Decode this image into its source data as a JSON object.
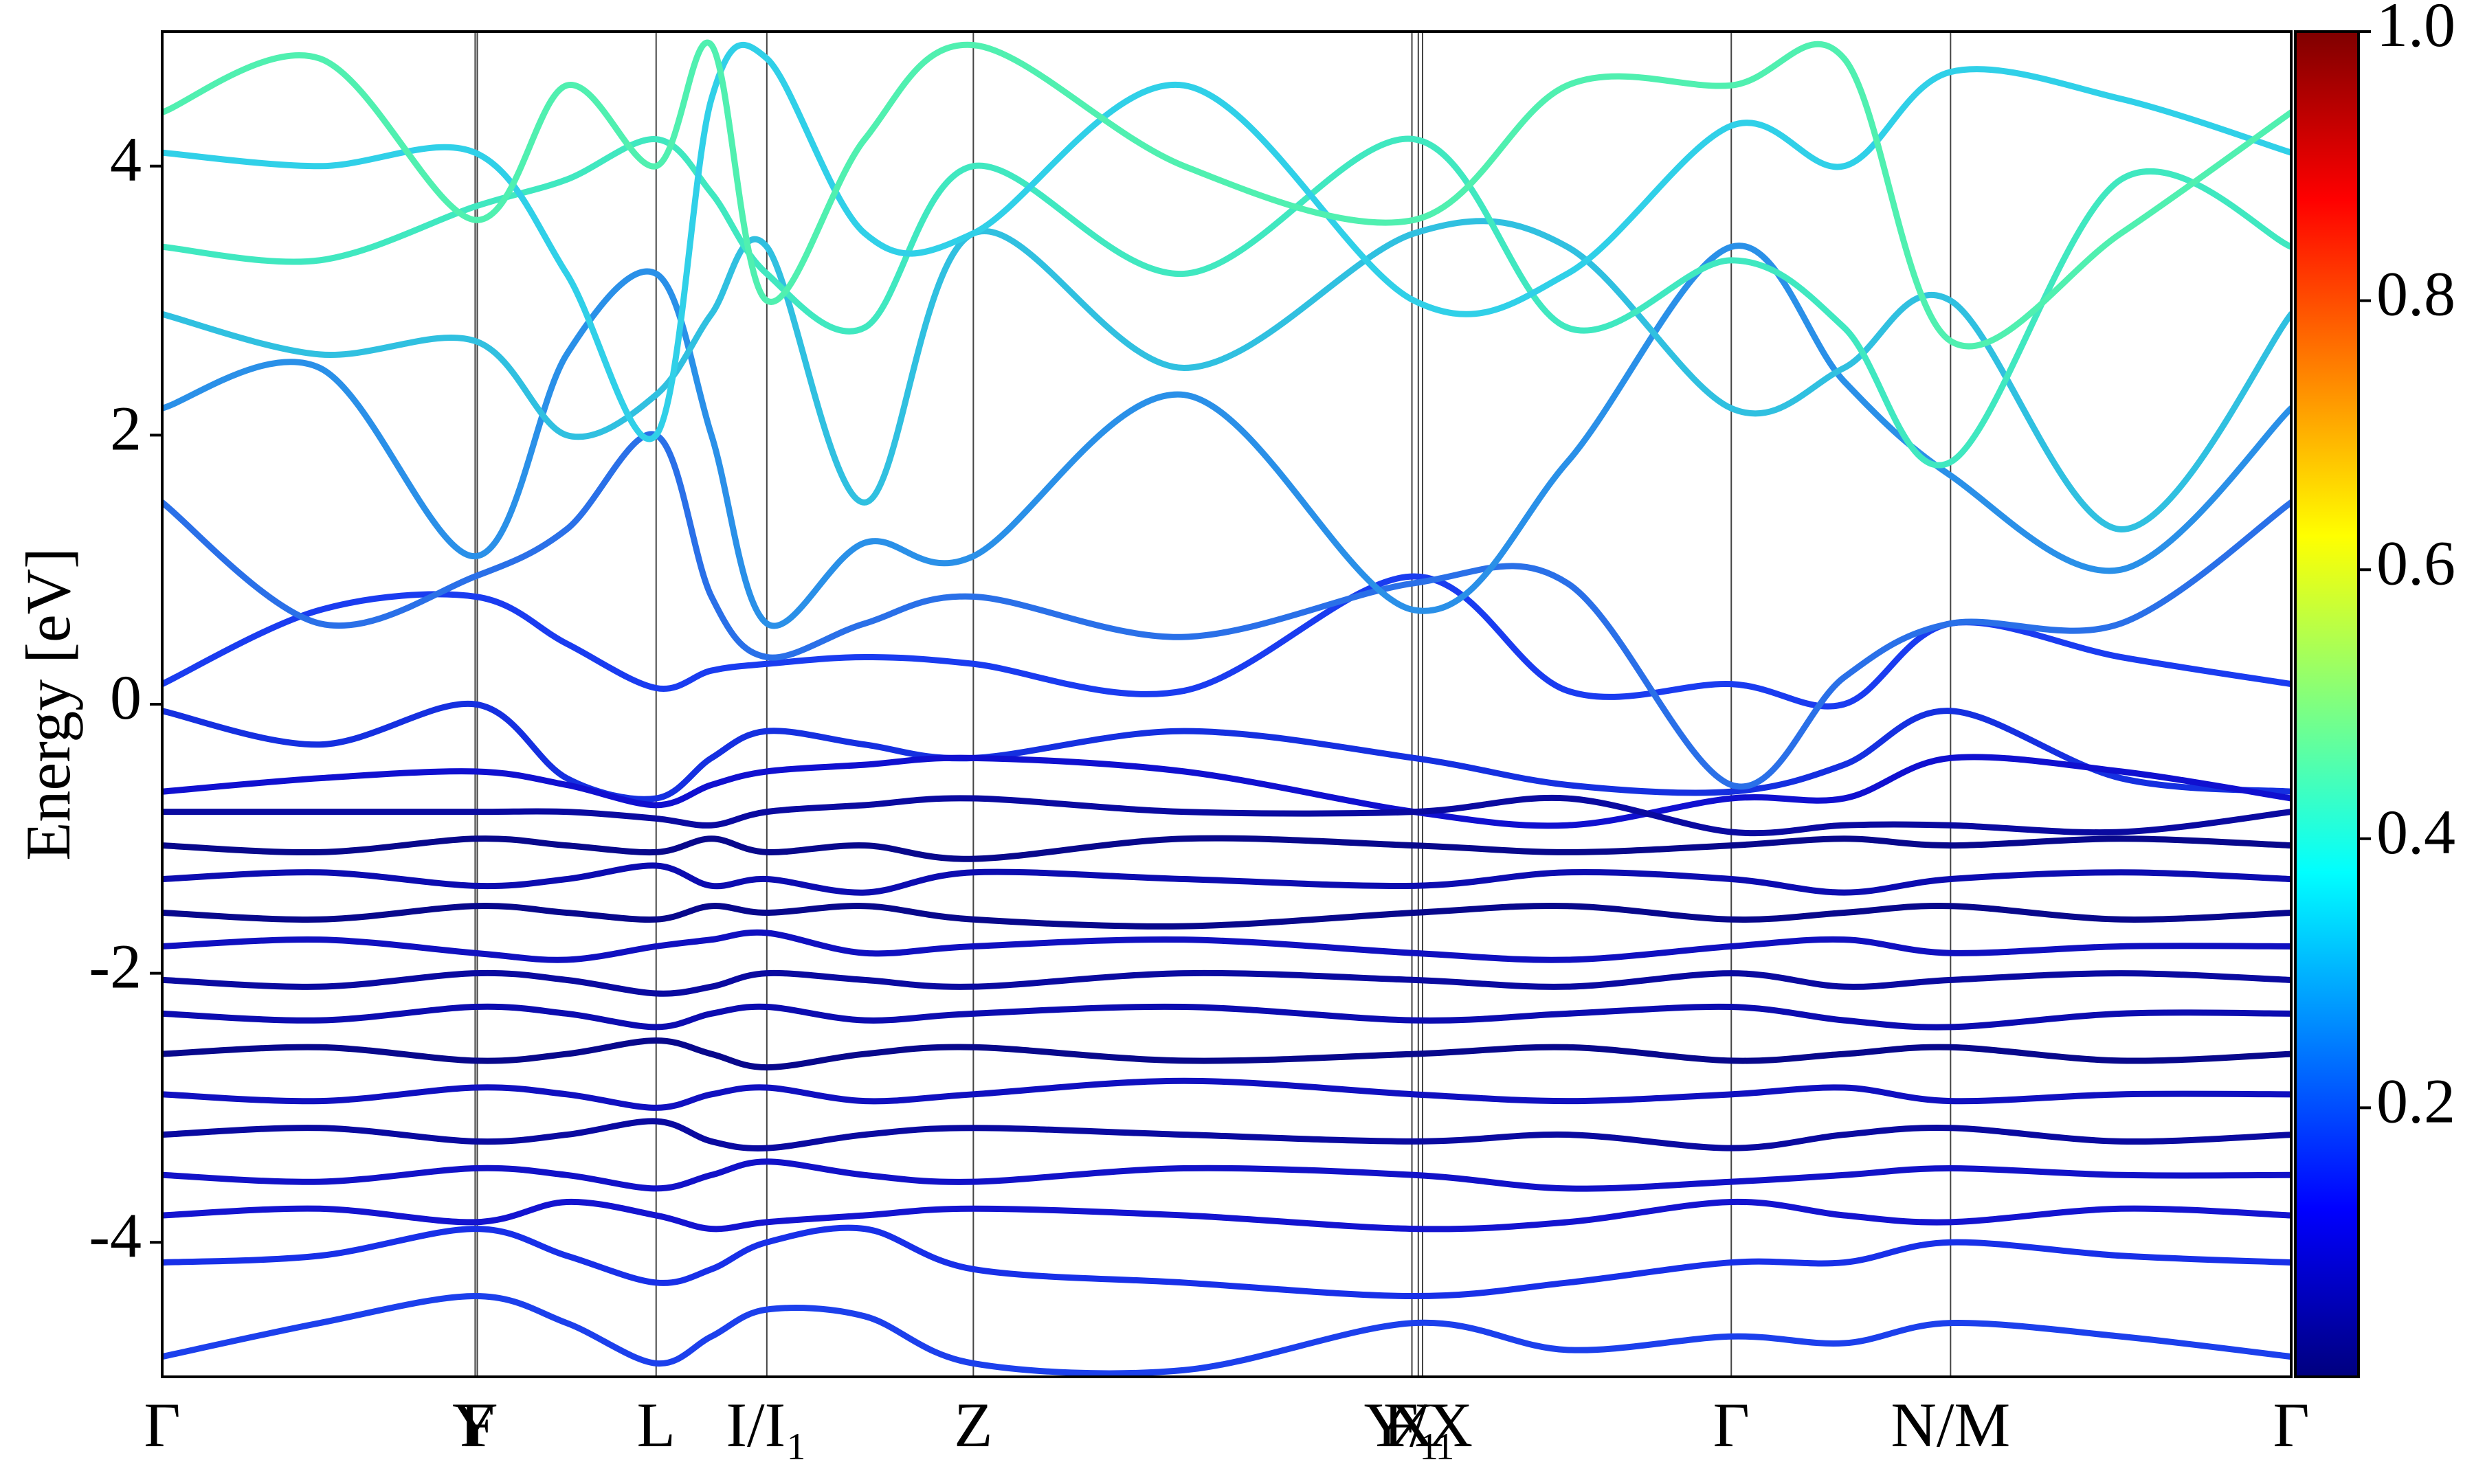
{
  "chart_data": {
    "type": "line",
    "y_label": "Energy [eV]",
    "ylim": [
      -5,
      5
    ],
    "yticks": [
      -4,
      -2,
      0,
      2,
      4
    ],
    "xlim": [
      0,
      1
    ],
    "xticks": [
      {
        "value": 0,
        "label": "Γ"
      },
      {
        "value": 0.147,
        "label": "Y"
      },
      {
        "value": 0.148,
        "label": "F"
      },
      {
        "value": 0.232,
        "label": "L"
      },
      {
        "value": 0.284,
        "label": "I/I₁"
      },
      {
        "value": 0.381,
        "label": "Z"
      },
      {
        "value": 0.587,
        "label": "F₁"
      },
      {
        "value": 0.59,
        "label": "Y/X"
      },
      {
        "value": 0.592,
        "label": "X₁"
      },
      {
        "value": 0.737,
        "label": "Γ"
      },
      {
        "value": 0.84,
        "label": "N/M"
      },
      {
        "value": 1,
        "label": "Γ"
      }
    ],
    "x": [
      0,
      0.074,
      0.147,
      0.19,
      0.232,
      0.258,
      0.284,
      0.33,
      0.381,
      0.48,
      0.588,
      0.66,
      0.737,
      0.79,
      0.84,
      0.92,
      1
    ],
    "series": [
      {
        "color": "#1a3cf0",
        "values": [
          0.15,
          0.7,
          0.8,
          0.45,
          0.12,
          0.25,
          0.3,
          0.35,
          0.3,
          0.1,
          0.95,
          0.1,
          0.15,
          0.0,
          0.6,
          0.35,
          0.15
        ]
      },
      {
        "color": "#1530e0",
        "values": [
          -0.05,
          -0.3,
          0.0,
          -0.55,
          -0.7,
          -0.4,
          -0.2,
          -0.3,
          -0.4,
          -0.2,
          -0.4,
          -0.6,
          -0.65,
          -0.45,
          -0.05,
          -0.55,
          -0.65
        ]
      },
      {
        "color": "#2a70e8",
        "values": [
          1.5,
          0.6,
          0.95,
          1.3,
          2.0,
          0.8,
          0.35,
          0.6,
          0.8,
          0.5,
          0.9,
          0.9,
          -0.6,
          0.2,
          0.6,
          0.6,
          1.5
        ]
      },
      {
        "color": "#2a90e8",
        "values": [
          2.2,
          2.5,
          1.1,
          2.6,
          3.2,
          2.0,
          0.6,
          1.2,
          1.1,
          2.3,
          0.7,
          1.8,
          3.4,
          2.4,
          1.7,
          1.0,
          2.2
        ]
      },
      {
        "color": "#30c0e0",
        "values": [
          2.9,
          2.6,
          2.7,
          2.0,
          2.3,
          2.9,
          3.4,
          1.5,
          3.5,
          2.5,
          3.5,
          3.4,
          2.2,
          2.5,
          3.0,
          1.3,
          2.9
        ]
      },
      {
        "color": "#40e8c0",
        "values": [
          3.4,
          3.3,
          3.7,
          3.9,
          4.2,
          3.8,
          3.2,
          2.8,
          4.0,
          3.2,
          4.2,
          2.8,
          3.3,
          2.8,
          1.8,
          3.9,
          3.4
        ]
      },
      {
        "color": "#30d0e8",
        "values": [
          4.1,
          4.0,
          4.1,
          3.2,
          2.0,
          4.5,
          4.8,
          3.5,
          3.5,
          4.6,
          3.0,
          3.2,
          4.3,
          4.0,
          4.7,
          4.5,
          4.1
        ]
      },
      {
        "color": "#50f0b0",
        "values": [
          4.4,
          4.8,
          3.6,
          4.6,
          4.0,
          4.9,
          3.0,
          4.2,
          4.9,
          4.0,
          3.6,
          4.6,
          4.6,
          4.8,
          2.7,
          3.5,
          4.4
        ]
      },
      {
        "color": "#1010d0",
        "values": [
          -0.65,
          -0.55,
          -0.5,
          -0.6,
          -0.75,
          -0.6,
          -0.5,
          -0.45,
          -0.4,
          -0.5,
          -0.8,
          -0.9,
          -0.7,
          -0.7,
          -0.4,
          -0.5,
          -0.7
        ]
      },
      {
        "color": "#0a0aa0",
        "values": [
          -0.8,
          -0.8,
          -0.8,
          -0.8,
          -0.85,
          -0.9,
          -0.8,
          -0.75,
          -0.7,
          -0.8,
          -0.8,
          -0.7,
          -0.95,
          -0.9,
          -0.9,
          -0.95,
          -0.8
        ]
      },
      {
        "color": "#08088c",
        "values": [
          -1.05,
          -1.1,
          -1.0,
          -1.05,
          -1.1,
          -1.0,
          -1.1,
          -1.05,
          -1.15,
          -1.0,
          -1.05,
          -1.1,
          -1.05,
          -1.0,
          -1.05,
          -1.0,
          -1.05
        ]
      },
      {
        "color": "#0c0cb0",
        "values": [
          -1.3,
          -1.25,
          -1.35,
          -1.3,
          -1.2,
          -1.35,
          -1.3,
          -1.4,
          -1.25,
          -1.3,
          -1.35,
          -1.25,
          -1.3,
          -1.4,
          -1.3,
          -1.25,
          -1.3
        ]
      },
      {
        "color": "#08088c",
        "values": [
          -1.55,
          -1.6,
          -1.5,
          -1.55,
          -1.6,
          -1.5,
          -1.55,
          -1.5,
          -1.6,
          -1.65,
          -1.55,
          -1.5,
          -1.6,
          -1.55,
          -1.5,
          -1.6,
          -1.55
        ]
      },
      {
        "color": "#1010c0",
        "values": [
          -1.8,
          -1.75,
          -1.85,
          -1.9,
          -1.8,
          -1.75,
          -1.7,
          -1.85,
          -1.8,
          -1.75,
          -1.85,
          -1.9,
          -1.8,
          -1.75,
          -1.85,
          -1.8,
          -1.8
        ]
      },
      {
        "color": "#0a0aa0",
        "values": [
          -2.05,
          -2.1,
          -2.0,
          -2.05,
          -2.15,
          -2.1,
          -2.0,
          -2.05,
          -2.1,
          -2.0,
          -2.05,
          -2.1,
          -2.0,
          -2.1,
          -2.05,
          -2.0,
          -2.05
        ]
      },
      {
        "color": "#0c0cb0",
        "values": [
          -2.3,
          -2.35,
          -2.25,
          -2.3,
          -2.4,
          -2.3,
          -2.25,
          -2.35,
          -2.3,
          -2.25,
          -2.35,
          -2.3,
          -2.25,
          -2.35,
          -2.4,
          -2.3,
          -2.3
        ]
      },
      {
        "color": "#08088c",
        "values": [
          -2.6,
          -2.55,
          -2.65,
          -2.6,
          -2.5,
          -2.6,
          -2.7,
          -2.6,
          -2.55,
          -2.65,
          -2.6,
          -2.55,
          -2.65,
          -2.6,
          -2.55,
          -2.65,
          -2.6
        ]
      },
      {
        "color": "#1010c0",
        "values": [
          -2.9,
          -2.95,
          -2.85,
          -2.9,
          -3.0,
          -2.9,
          -2.85,
          -2.95,
          -2.9,
          -2.8,
          -2.9,
          -2.95,
          -2.9,
          -2.85,
          -2.95,
          -2.9,
          -2.9
        ]
      },
      {
        "color": "#0a0aa0",
        "values": [
          -3.2,
          -3.15,
          -3.25,
          -3.2,
          -3.1,
          -3.25,
          -3.3,
          -3.2,
          -3.15,
          -3.2,
          -3.25,
          -3.2,
          -3.3,
          -3.2,
          -3.15,
          -3.25,
          -3.2
        ]
      },
      {
        "color": "#1212c8",
        "values": [
          -3.5,
          -3.55,
          -3.45,
          -3.5,
          -3.6,
          -3.5,
          -3.4,
          -3.5,
          -3.55,
          -3.45,
          -3.5,
          -3.6,
          -3.55,
          -3.5,
          -3.45,
          -3.5,
          -3.5
        ]
      },
      {
        "color": "#1414d0",
        "values": [
          -3.8,
          -3.75,
          -3.85,
          -3.7,
          -3.8,
          -3.9,
          -3.85,
          -3.8,
          -3.75,
          -3.8,
          -3.9,
          -3.85,
          -3.7,
          -3.8,
          -3.85,
          -3.75,
          -3.8
        ]
      },
      {
        "color": "#1830e8",
        "values": [
          -4.15,
          -4.1,
          -3.9,
          -4.1,
          -4.3,
          -4.2,
          -4.0,
          -3.9,
          -4.2,
          -4.3,
          -4.4,
          -4.3,
          -4.15,
          -4.15,
          -4.0,
          -4.1,
          -4.15
        ]
      },
      {
        "color": "#1c40ec",
        "values": [
          -4.85,
          -4.6,
          -4.4,
          -4.6,
          -4.9,
          -4.7,
          -4.5,
          -4.55,
          -4.9,
          -4.95,
          -4.6,
          -4.8,
          -4.7,
          -4.75,
          -4.6,
          -4.7,
          -4.85
        ]
      }
    ],
    "colorbar": {
      "colormap": "jet",
      "lim": [
        0,
        1
      ],
      "ticks": [
        0.2,
        0.4,
        0.6,
        0.8,
        {
          "value": 1,
          "label": "1.0"
        }
      ]
    }
  }
}
